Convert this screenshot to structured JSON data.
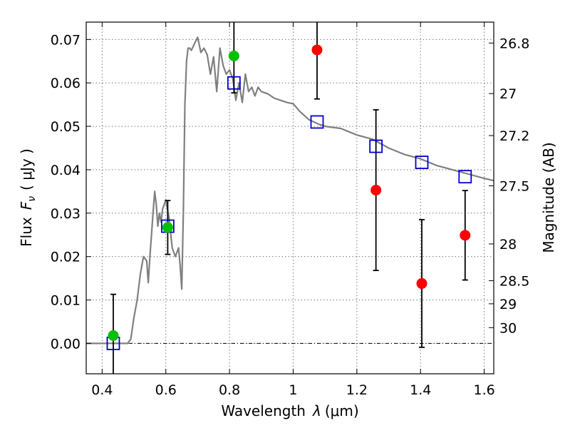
{
  "chart_data": {
    "type": "scatter",
    "title": "",
    "xlabel_prefix": "Wavelength",
    "xlabel_symbol": "λ",
    "xlabel_unit": "(μm)",
    "ylabel_prefix": "Flux",
    "ylabel_symbol": "F",
    "ylabel_subscript": "ν",
    "ylabel_unit": "( μJy )",
    "y2label": "Magnitude (AB)",
    "xlim": [
      0.35,
      1.63
    ],
    "ylim": [
      -0.007,
      0.074
    ],
    "grid": true,
    "x_ticks": [
      0.4,
      0.6,
      0.8,
      1.0,
      1.2,
      1.4,
      1.6
    ],
    "x_tick_labels": [
      "0.4",
      "0.6",
      "0.8",
      "1",
      "1.2",
      "1.4",
      "1.6"
    ],
    "y_ticks": [
      0.0,
      0.01,
      0.02,
      0.03,
      0.04,
      0.05,
      0.06,
      0.07
    ],
    "y_tick_labels": [
      "0.00",
      "0.01",
      "0.02",
      "0.03",
      "0.04",
      "0.05",
      "0.06",
      "0.07"
    ],
    "mag_ticks": [
      26.8,
      27,
      27.2,
      27.5,
      28,
      28.5,
      29,
      30
    ],
    "mag_tick_labels": [
      "26.8",
      "27",
      "27.2",
      "27.5",
      "28",
      "28.5",
      "29",
      "30"
    ],
    "zero_line": 0.0,
    "colors": {
      "model": "#808080",
      "model_photometry": "#0000cc",
      "detections": "#00c000",
      "upper_limits": "#ff0000",
      "errorbars": "#000000"
    },
    "series": [
      {
        "kind": "line",
        "x": [
          0.35,
          0.4,
          0.45,
          0.48,
          0.49,
          0.5,
          0.51,
          0.52,
          0.53,
          0.54,
          0.545,
          0.55,
          0.56,
          0.565,
          0.57,
          0.575,
          0.58,
          0.585,
          0.59,
          0.6,
          0.61,
          0.62,
          0.63,
          0.64,
          0.645,
          0.65,
          0.655,
          0.66,
          0.665,
          0.67,
          0.675,
          0.68,
          0.69,
          0.7,
          0.71,
          0.72,
          0.73,
          0.74,
          0.75,
          0.76,
          0.77,
          0.78,
          0.79,
          0.8,
          0.81,
          0.82,
          0.83,
          0.84,
          0.85,
          0.86,
          0.87,
          0.88,
          0.89,
          0.9,
          0.92,
          0.94,
          0.96,
          0.98,
          1.0,
          1.02,
          1.05,
          1.08,
          1.1,
          1.15,
          1.2,
          1.25,
          1.3,
          1.35,
          1.4,
          1.45,
          1.5,
          1.55,
          1.6,
          1.63
        ],
        "y": [
          0.0,
          0.0,
          0.0,
          0.0,
          0.001,
          0.006,
          0.01,
          0.016,
          0.02,
          0.019,
          0.014,
          0.02,
          0.03,
          0.035,
          0.032,
          0.027,
          0.03,
          0.028,
          0.031,
          0.033,
          0.029,
          0.022,
          0.02,
          0.022,
          0.018,
          0.0125,
          0.03,
          0.055,
          0.065,
          0.068,
          0.068,
          0.0675,
          0.069,
          0.0705,
          0.067,
          0.068,
          0.0665,
          0.062,
          0.066,
          0.058,
          0.068,
          0.064,
          0.062,
          0.063,
          0.061,
          0.056,
          0.06,
          0.0555,
          0.062,
          0.058,
          0.059,
          0.057,
          0.059,
          0.058,
          0.0575,
          0.0565,
          0.056,
          0.0555,
          0.0552,
          0.0535,
          0.0515,
          0.0505,
          0.05,
          0.0495,
          0.048,
          0.047,
          0.045,
          0.0435,
          0.0425,
          0.041,
          0.04,
          0.039,
          0.038,
          0.0375
        ]
      },
      {
        "kind": "model_photometry",
        "x": [
          0.435,
          0.606,
          0.814,
          1.075,
          1.26,
          1.404,
          1.54
        ],
        "y": [
          0.0,
          0.027,
          0.06,
          0.051,
          0.0454,
          0.0417,
          0.0384
        ]
      },
      {
        "kind": "detections",
        "x": [
          0.435,
          0.606,
          0.814
        ],
        "y": [
          0.0018,
          0.0267,
          0.0662
        ],
        "err": [
          0.0095,
          0.0062,
          0.0085
        ]
      },
      {
        "kind": "upper_limits",
        "x": [
          1.075,
          1.26,
          1.404,
          1.54
        ],
        "y": [
          0.0676,
          0.0353,
          0.0138,
          0.0249
        ],
        "err": [
          0.0113,
          0.0185,
          0.0147,
          0.0103
        ]
      }
    ]
  }
}
